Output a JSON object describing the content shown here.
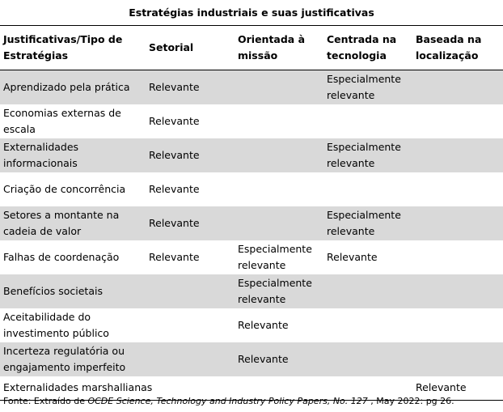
{
  "title": "Estratégias industriais e suas justificativas",
  "headers": [
    "Justificativas/Tipo de Estratégias",
    "Setorial",
    "Orientada à missão",
    "Centrada na tecnologia",
    "Baseada na localização"
  ],
  "rows": [
    [
      "Aprendizado pela prática",
      "Relevante",
      "",
      "Especialmente relevante",
      ""
    ],
    [
      "Economias externas de escala",
      "Relevante",
      "",
      "",
      ""
    ],
    [
      "Externalidades informacionais",
      "Relevante",
      "",
      "Especialmente relevante",
      ""
    ],
    [
      "Criação de concorrência",
      "Relevante",
      "",
      "",
      ""
    ],
    [
      "Setores a montante na cadeia de valor",
      "Relevante",
      "",
      "Especialmente relevante",
      ""
    ],
    [
      "Falhas de coordenação",
      "Relevante",
      "Especialmente relevante",
      "Relevante",
      ""
    ],
    [
      "Benefícios societais",
      "",
      "Especialmente relevante",
      "",
      ""
    ],
    [
      "Aceitabilidade do investimento público",
      "",
      "Relevante",
      "",
      ""
    ],
    [
      "Incerteza regulatória ou engajamento imperfeito",
      "",
      "Relevante",
      "",
      ""
    ],
    [
      "Externalidades marshallianas",
      "",
      "",
      "",
      "Relevante"
    ]
  ],
  "source": {
    "prefix": "Fonte: Extraído de ",
    "publication": "OCDE Science, Technology and Industry Policy Papers, No. 127",
    "suffix": " , May 2022: pg 26."
  }
}
